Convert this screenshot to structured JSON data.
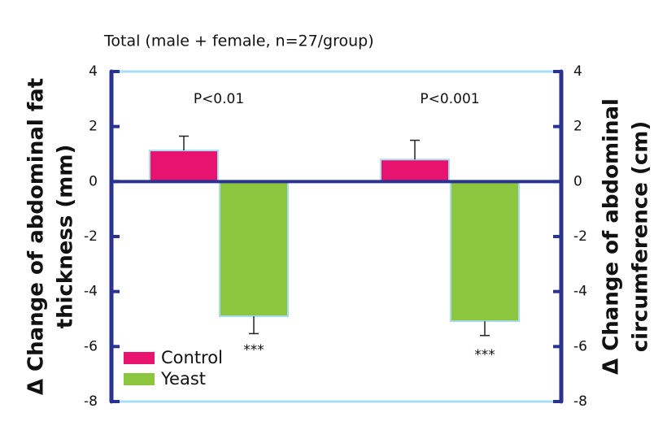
{
  "chart_data": {
    "type": "bar",
    "title": "Total (male + female, n=27/group)",
    "ylabel": [
      "Δ Change of abdominal fat",
      "thickness (mm)"
    ],
    "y2label": [
      "Δ Change of abdominal",
      "circumference (cm)"
    ],
    "categories": [
      null,
      null
    ],
    "p_values": [
      "P<0.01",
      "P<0.001"
    ],
    "series": [
      {
        "name": "Control",
        "color": "#e8126f",
        "values": [
          1.13,
          0.8
        ],
        "errors": [
          0.52,
          0.7
        ]
      },
      {
        "name": "Yeast",
        "color": "#8cc63f",
        "values": [
          -4.9,
          -5.08
        ],
        "errors": [
          0.63,
          0.52
        ],
        "labels": [
          "***",
          "***"
        ]
      }
    ],
    "ylim": [
      -8,
      4
    ],
    "yticks": [
      -8,
      -6,
      -4,
      -2,
      0,
      2,
      4
    ],
    "y2lim": [
      -8,
      4
    ],
    "y2ticks": [
      -8,
      -6,
      -4,
      -2,
      0,
      2,
      4
    ],
    "legend": "lower-left"
  }
}
